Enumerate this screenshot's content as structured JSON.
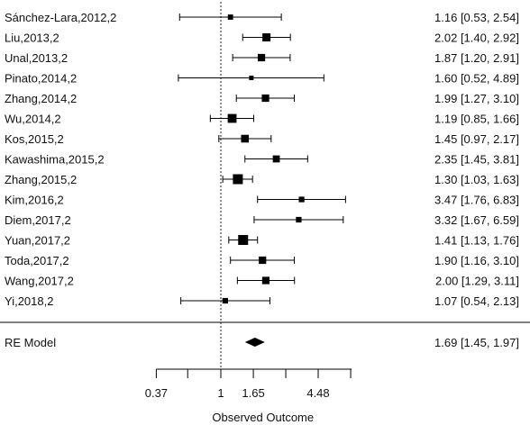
{
  "chart_data": {
    "type": "forest",
    "xlabel": "Observed Outcome",
    "x_scale": "log",
    "xlim": [
      0.37,
      7.5
    ],
    "x_ticks": [
      0.37,
      1,
      1.65,
      4.48
    ],
    "x_tick_labels": [
      "0.37",
      "1",
      "1.65",
      "4.48"
    ],
    "reference_line": 1,
    "studies": [
      {
        "label": "Sánchez-Lara,2012,2",
        "est": 1.16,
        "lo": 0.53,
        "hi": 2.54,
        "text": "1.16 [0.53, 2.54]",
        "weight": 0.35
      },
      {
        "label": "Liu,2013,2",
        "est": 2.02,
        "lo": 1.4,
        "hi": 2.92,
        "text": "2.02 [1.40, 2.92]",
        "weight": 0.75
      },
      {
        "label": "Unal,2013,2",
        "est": 1.87,
        "lo": 1.2,
        "hi": 2.91,
        "text": "1.87 [1.20, 2.91]",
        "weight": 0.65
      },
      {
        "label": "Pinato,2014,2",
        "est": 1.6,
        "lo": 0.52,
        "hi": 4.89,
        "text": "1.60 [0.52, 4.89]",
        "weight": 0.25
      },
      {
        "label": "Zhang,2014,2",
        "est": 1.99,
        "lo": 1.27,
        "hi": 3.1,
        "text": "1.99 [1.27, 3.10]",
        "weight": 0.65
      },
      {
        "label": "Wu,2014,2",
        "est": 1.19,
        "lo": 0.85,
        "hi": 1.66,
        "text": "1.19 [0.85, 1.66]",
        "weight": 0.85
      },
      {
        "label": "Kos,2015,2",
        "est": 1.45,
        "lo": 0.97,
        "hi": 2.17,
        "text": "1.45 [0.97, 2.17]",
        "weight": 0.7
      },
      {
        "label": "Kawashima,2015,2",
        "est": 2.35,
        "lo": 1.45,
        "hi": 3.81,
        "text": "2.35 [1.45, 3.81]",
        "weight": 0.6
      },
      {
        "label": "Zhang,2015,2",
        "est": 1.3,
        "lo": 1.03,
        "hi": 1.63,
        "text": "1.30 [1.03, 1.63]",
        "weight": 1.0
      },
      {
        "label": "Kim,2016,2",
        "est": 3.47,
        "lo": 1.76,
        "hi": 6.83,
        "text": "3.47 [1.76, 6.83]",
        "weight": 0.4
      },
      {
        "label": "Diem,2017,2",
        "est": 3.32,
        "lo": 1.67,
        "hi": 6.59,
        "text": "3.32 [1.67, 6.59]",
        "weight": 0.4
      },
      {
        "label": "Yuan,2017,2",
        "est": 1.41,
        "lo": 1.13,
        "hi": 1.76,
        "text": "1.41 [1.13, 1.76]",
        "weight": 1.0
      },
      {
        "label": "Toda,2017,2",
        "est": 1.9,
        "lo": 1.16,
        "hi": 3.1,
        "text": "1.90 [1.16, 3.10]",
        "weight": 0.65
      },
      {
        "label": "Wang,2017,2",
        "est": 2.0,
        "lo": 1.29,
        "hi": 3.11,
        "text": "2.00 [1.29, 3.11]",
        "weight": 0.65
      },
      {
        "label": "Yi,2018,2",
        "est": 1.07,
        "lo": 0.54,
        "hi": 2.13,
        "text": "1.07 [0.54, 2.13]",
        "weight": 0.4
      }
    ],
    "summary": {
      "label": "RE Model",
      "est": 1.69,
      "lo": 1.45,
      "hi": 1.97,
      "text": "1.69 [1.45, 1.97]"
    }
  }
}
